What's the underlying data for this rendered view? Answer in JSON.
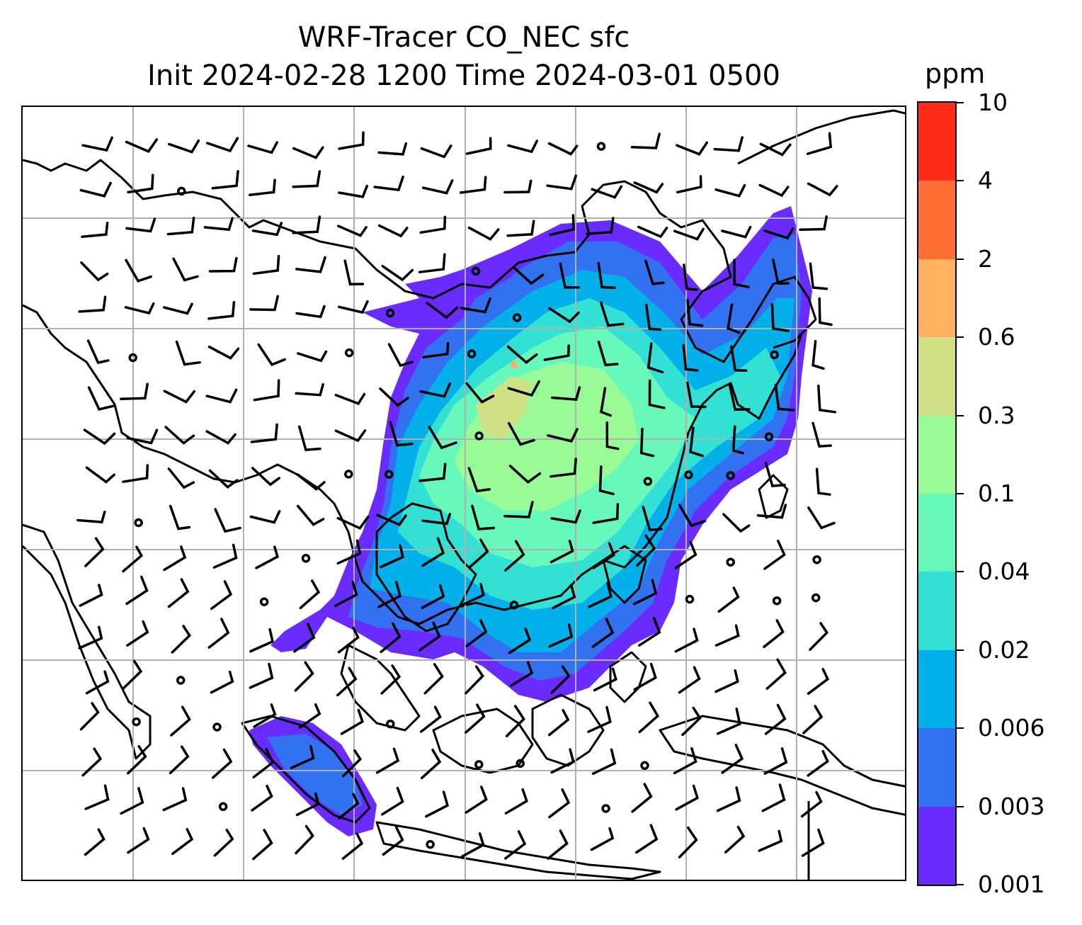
{
  "title": {
    "line1": "WRF-Tracer CO_NEC sfc",
    "line2": "Init 2024-02-28 1200 Time 2024-03-01 0500"
  },
  "colorbar": {
    "unit": "ppm",
    "levels": [
      "0.001",
      "0.003",
      "0.006",
      "0.02",
      "0.04",
      "0.1",
      "0.3",
      "0.6",
      "2",
      "4",
      "10"
    ],
    "colors": [
      "#6a2bff",
      "#3271f0",
      "#04b0ea",
      "#33e0d4",
      "#67f8bc",
      "#98fb98",
      "#cfe087",
      "#ffb060",
      "#ff7037",
      "#ff2a17"
    ]
  },
  "map": {
    "projection": "lat-lon with gridlines",
    "gridlines": true,
    "coastline_color": "#000000",
    "gridline_color": "#b0b0b0",
    "wind_barb_color": "#000000",
    "field": "CO_NEC tracer concentration",
    "plume_levels_present": [
      "0.001",
      "0.003",
      "0.006",
      "0.02",
      "0.04",
      "0.1",
      "0.3",
      "0.6"
    ]
  }
}
